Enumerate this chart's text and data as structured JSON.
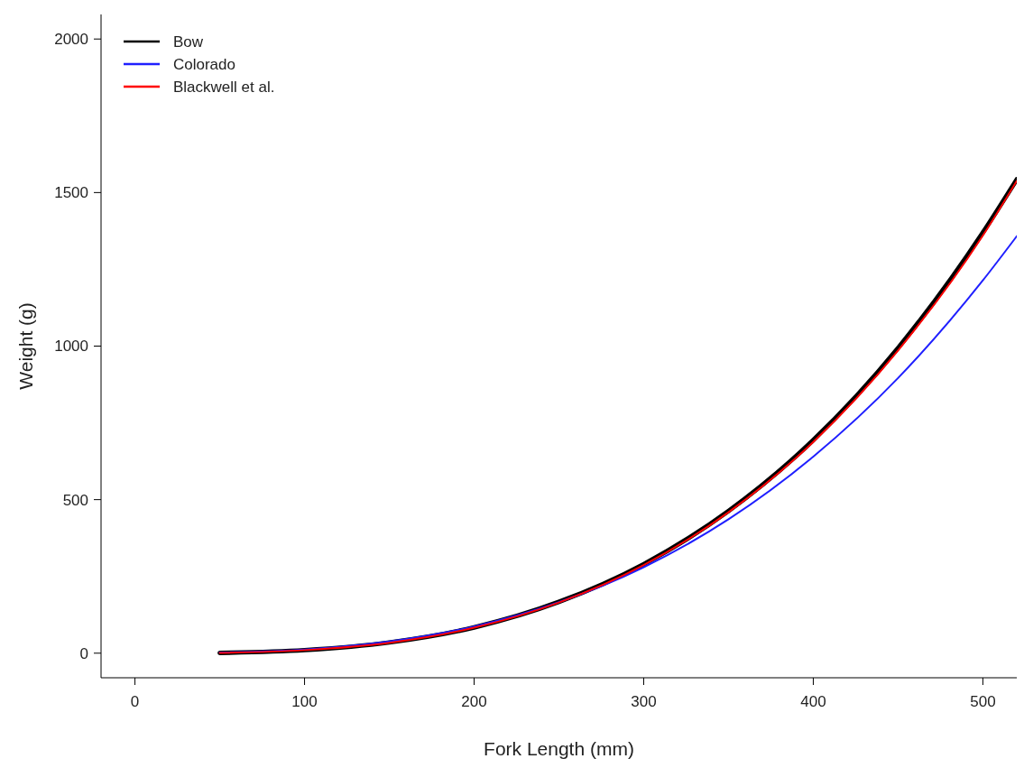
{
  "chart_data": {
    "type": "line",
    "xlabel": "Fork Length (mm)",
    "ylabel": "Weight (g)",
    "x": [
      50,
      100,
      150,
      200,
      250,
      300,
      350,
      400,
      450,
      500,
      520
    ],
    "series": [
      {
        "name": "Bow",
        "color": "#000000",
        "values": [
          1,
          10,
          35,
          84,
          167,
          290,
          463,
          694,
          994,
          1370,
          1543
        ]
      },
      {
        "name": "Colorado",
        "color": "#1f1fff",
        "values": [
          2,
          12,
          38,
          87,
          166,
          280,
          436,
          640,
          896,
          1214,
          1358
        ]
      },
      {
        "name": "Blackwell et al.",
        "color": "#ff0000",
        "values": [
          1,
          10,
          34,
          83,
          165,
          287,
          459,
          688,
          986,
          1360,
          1538
        ]
      }
    ],
    "xlim": [
      -20,
      520
    ],
    "ylim": [
      -80,
      2080
    ],
    "xticks": [
      0,
      100,
      200,
      300,
      400,
      500
    ],
    "yticks": [
      0,
      500,
      1000,
      1500,
      2000
    ],
    "grid": false,
    "legend": "top left",
    "marker": "none",
    "line_style": "solid"
  }
}
